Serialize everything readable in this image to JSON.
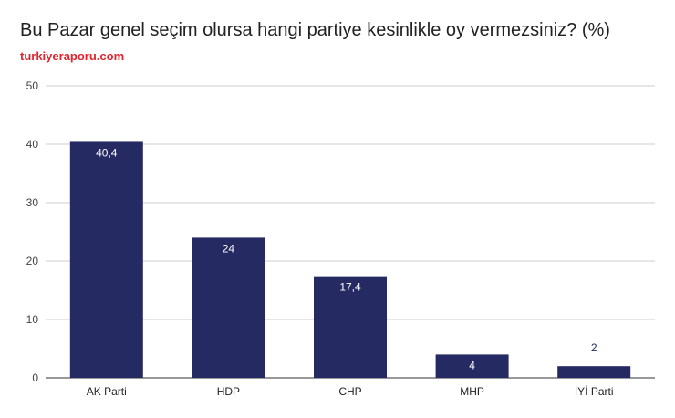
{
  "header": {
    "title": "Bu Pazar genel seçim olursa hangi partiye kesinlikle oy vermezsiniz? (%)",
    "source": "turkiyeraporu.com"
  },
  "colors": {
    "bar": "#262a62",
    "source": "#e0252e",
    "grid": "#cccccc",
    "label_inside": "#ffffff",
    "label_outside": "#262a62"
  },
  "chart_data": {
    "type": "bar",
    "title": "Bu Pazar genel seçim olursa hangi partiye kesinlikle oy vermezsiniz? (%)",
    "categories": [
      "AK Parti",
      "HDP",
      "CHP",
      "MHP",
      "İYİ Parti"
    ],
    "values": [
      40.4,
      24,
      17.4,
      4,
      2
    ],
    "data_labels": [
      "40,4",
      "24",
      "17,4",
      "4",
      "2"
    ],
    "ylim": [
      0,
      50
    ],
    "yticks": [
      0,
      10,
      20,
      30,
      40,
      50
    ],
    "xlabel": "",
    "ylabel": "",
    "grid": true,
    "legend": "none"
  }
}
